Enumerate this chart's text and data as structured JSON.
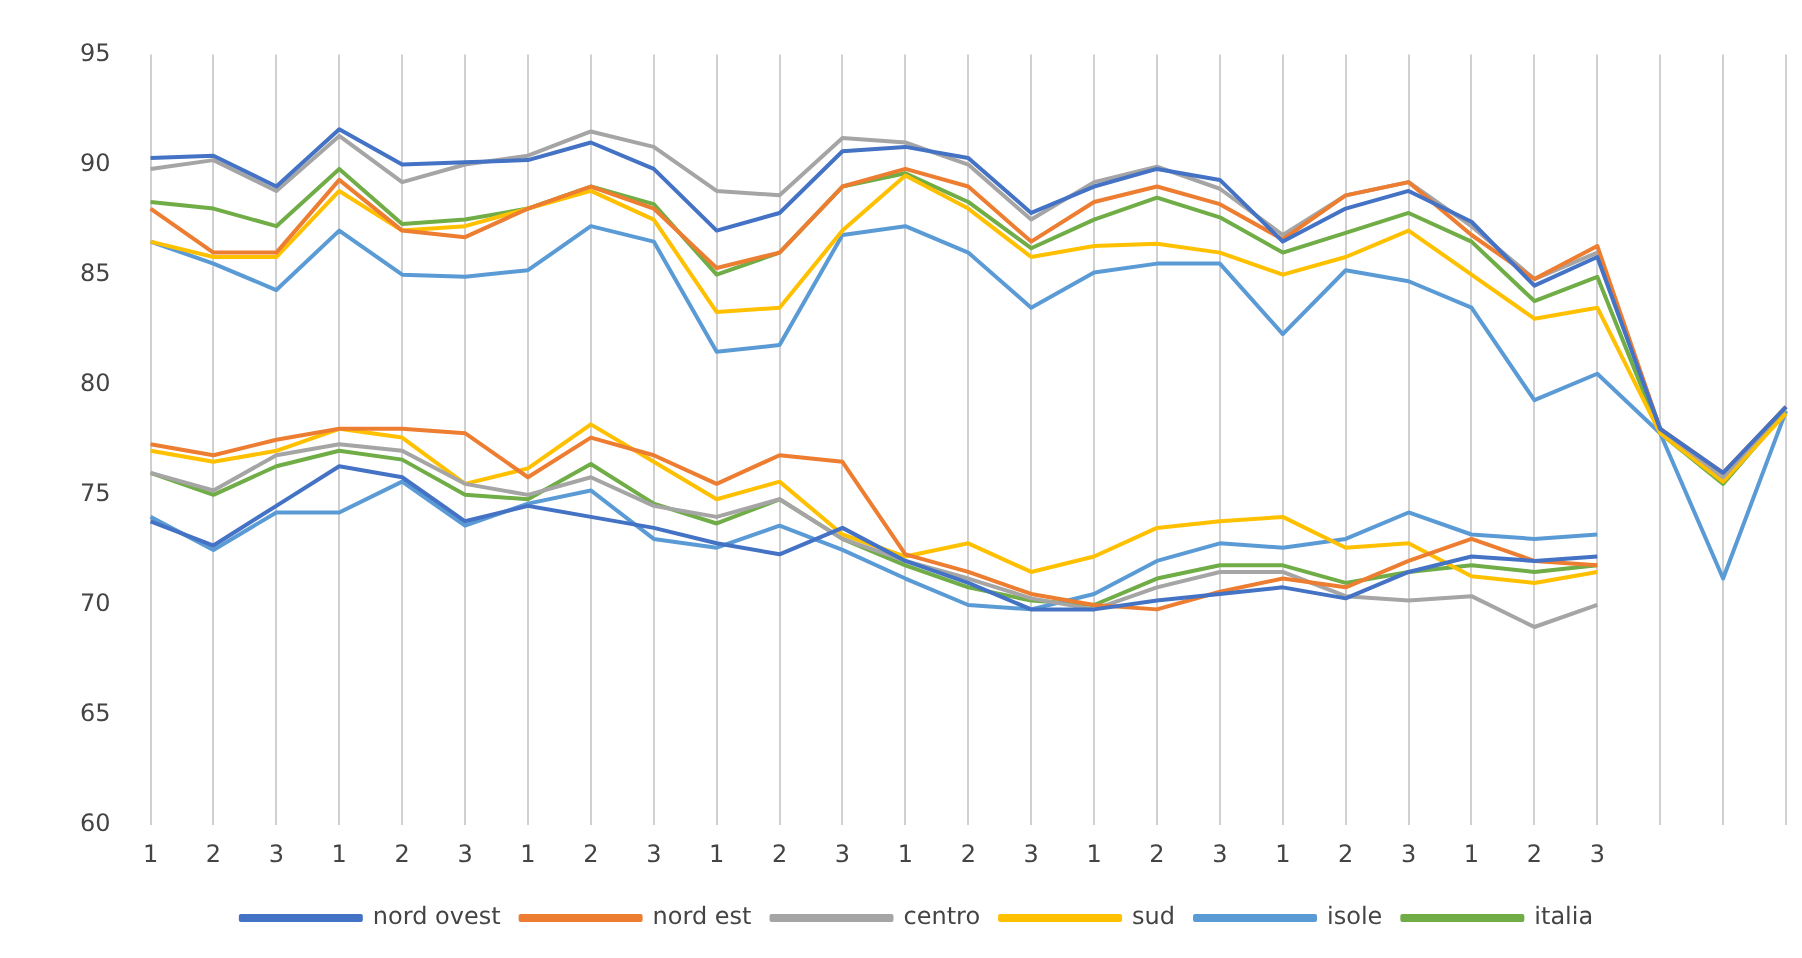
{
  "chart_data": {
    "type": "line",
    "categories": [
      "1",
      "2",
      "3",
      "1",
      "2",
      "3",
      "1",
      "2",
      "3",
      "1",
      "2",
      "3",
      "1",
      "2",
      "3",
      "1",
      "2",
      "3",
      "1",
      "2",
      "3",
      "1",
      "2",
      "3",
      null,
      null,
      null
    ],
    "ylim": [
      60,
      95
    ],
    "yticks": [
      60,
      65,
      70,
      75,
      80,
      85,
      90,
      95
    ],
    "grid": "x",
    "legend": "bottom",
    "marker": "none",
    "line_style": "solid",
    "series": [
      {
        "name": "nord ovest",
        "color": "#4472c4",
        "values": [
          90.3,
          90.4,
          89.0,
          91.6,
          90.0,
          90.1,
          90.2,
          91.0,
          89.8,
          87.0,
          87.8,
          90.6,
          90.8,
          90.3,
          87.8,
          89.0,
          89.8,
          89.3,
          86.5,
          88.0,
          88.8,
          87.4,
          84.5,
          85.8,
          78.0,
          76.0,
          79.0
        ]
      },
      {
        "name": "nord est",
        "color": "#ed7d31",
        "values": [
          88.0,
          86.0,
          86.0,
          89.3,
          87.0,
          86.7,
          88.0,
          89.0,
          88.0,
          85.3,
          86.0,
          89.0,
          89.8,
          89.0,
          86.5,
          88.3,
          89.0,
          88.2,
          86.6,
          88.6,
          89.2,
          86.8,
          84.8,
          86.3,
          78.0,
          76.0,
          79.0
        ]
      },
      {
        "name": "centro",
        "color": "#a5a5a5",
        "values": [
          89.8,
          90.2,
          88.8,
          91.3,
          89.2,
          90.0,
          90.4,
          91.5,
          90.8,
          88.8,
          88.6,
          91.2,
          91.0,
          90.0,
          87.5,
          89.2,
          89.9,
          88.9,
          86.8,
          88.6,
          89.2,
          87.2,
          84.8,
          86.0,
          78.0,
          75.8,
          79.0
        ]
      },
      {
        "name": "sud",
        "color": "#ffc000",
        "values": [
          86.5,
          85.8,
          85.8,
          88.8,
          87.0,
          87.2,
          88.0,
          88.8,
          87.5,
          83.3,
          83.5,
          87.0,
          89.5,
          88.0,
          85.8,
          86.3,
          86.4,
          86.0,
          85.0,
          85.8,
          87.0,
          85.0,
          83.0,
          83.5,
          77.8,
          75.6,
          78.7
        ]
      },
      {
        "name": "isole",
        "color": "#5b9bd5",
        "values": [
          86.5,
          85.5,
          84.3,
          87.0,
          85.0,
          84.9,
          85.2,
          87.2,
          86.5,
          81.5,
          81.8,
          86.8,
          87.2,
          86.0,
          83.5,
          85.1,
          85.5,
          85.5,
          82.3,
          85.2,
          84.7,
          83.5,
          79.3,
          80.5,
          77.8,
          71.2,
          78.8
        ]
      },
      {
        "name": "italia",
        "color": "#70ad47",
        "values": [
          88.3,
          88.0,
          87.2,
          89.8,
          87.3,
          87.5,
          88.0,
          89.0,
          88.2,
          85.0,
          86.0,
          89.0,
          89.6,
          88.3,
          86.2,
          87.5,
          88.5,
          87.6,
          86.0,
          86.9,
          87.8,
          86.5,
          83.8,
          84.9,
          77.8,
          75.5,
          78.8
        ]
      },
      {
        "color": "#4472c4",
        "values": [
          73.8,
          72.7,
          74.5,
          76.3,
          75.8,
          73.8,
          74.5,
          74.0,
          73.5,
          72.8,
          72.3,
          73.5,
          72.0,
          71.0,
          69.8,
          69.8,
          70.2,
          70.5,
          70.8,
          70.3,
          71.5,
          72.2,
          72.0,
          72.2,
          null,
          null,
          null
        ]
      },
      {
        "color": "#ed7d31",
        "values": [
          77.3,
          76.8,
          77.5,
          78.0,
          78.0,
          77.8,
          75.8,
          77.6,
          76.8,
          75.5,
          76.8,
          76.5,
          72.3,
          71.5,
          70.5,
          70.0,
          69.8,
          70.6,
          71.2,
          70.8,
          72.0,
          73.0,
          72.0,
          71.8,
          null,
          null,
          null
        ]
      },
      {
        "color": "#a5a5a5",
        "values": [
          76.0,
          75.2,
          76.8,
          77.3,
          77.0,
          75.5,
          75.0,
          75.8,
          74.5,
          74.0,
          74.8,
          73.0,
          72.0,
          71.2,
          70.3,
          69.8,
          70.8,
          71.5,
          71.5,
          70.4,
          70.2,
          70.4,
          69.0,
          70.0,
          null,
          null,
          null
        ]
      },
      {
        "color": "#ffc000",
        "values": [
          77.0,
          76.5,
          77.0,
          78.0,
          77.6,
          75.5,
          76.2,
          78.2,
          76.5,
          74.8,
          75.6,
          73.2,
          72.2,
          72.8,
          71.5,
          72.2,
          73.5,
          73.8,
          74.0,
          72.6,
          72.8,
          71.3,
          71.0,
          71.5,
          null,
          null,
          null
        ]
      },
      {
        "color": "#5b9bd5",
        "values": [
          74.0,
          72.5,
          74.2,
          74.2,
          75.6,
          73.6,
          74.6,
          75.2,
          73.0,
          72.6,
          73.6,
          72.5,
          71.2,
          70.0,
          69.8,
          70.5,
          72.0,
          72.8,
          72.6,
          73.0,
          74.2,
          73.2,
          73.0,
          73.2,
          null,
          null,
          null
        ]
      },
      {
        "color": "#70ad47",
        "values": [
          76.0,
          75.0,
          76.3,
          77.0,
          76.6,
          75.0,
          74.8,
          76.4,
          74.6,
          73.7,
          74.8,
          73.0,
          71.8,
          70.8,
          70.2,
          70.0,
          71.2,
          71.8,
          71.8,
          71.0,
          71.5,
          71.8,
          71.5,
          71.8,
          null,
          null,
          null
        ]
      }
    ]
  }
}
